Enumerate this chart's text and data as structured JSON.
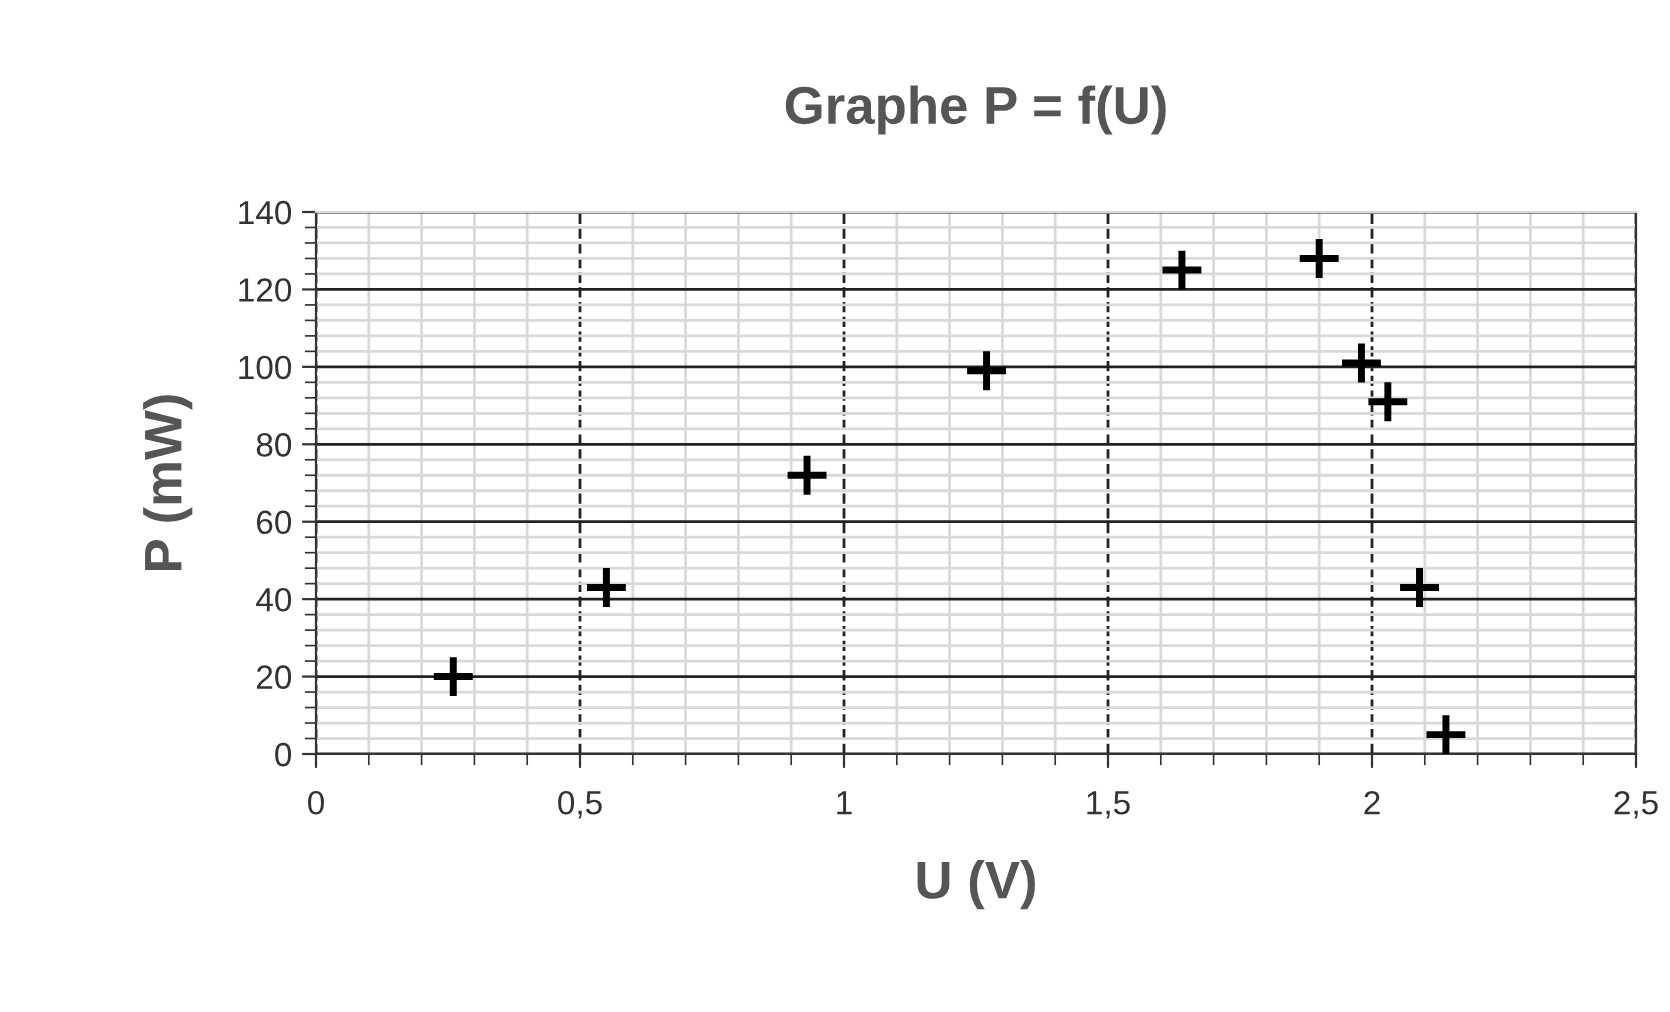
{
  "chart_data": {
    "type": "scatter",
    "title": "Graphe P = f(U)",
    "xlabel": "U (V)",
    "ylabel": "P (mW)",
    "x": [
      0.26,
      0.55,
      0.93,
      1.27,
      1.64,
      1.9,
      1.98,
      2.03,
      2.09,
      2.14
    ],
    "values": [
      20,
      43,
      72,
      99,
      125,
      128,
      101,
      91,
      43,
      5
    ],
    "color": "#000000",
    "marker": "cross",
    "xlim": [
      0,
      2.5
    ],
    "xticks": [
      0,
      {
        "value": 0.5,
        "label": "0,5"
      },
      1,
      {
        "value": 1.5,
        "label": "1,5"
      },
      2,
      {
        "value": 2.5,
        "label": "2,5"
      }
    ],
    "ylim": [
      0,
      140
    ],
    "yticks": [
      0,
      20,
      40,
      60,
      80,
      100,
      120,
      140
    ],
    "grid": true
  }
}
